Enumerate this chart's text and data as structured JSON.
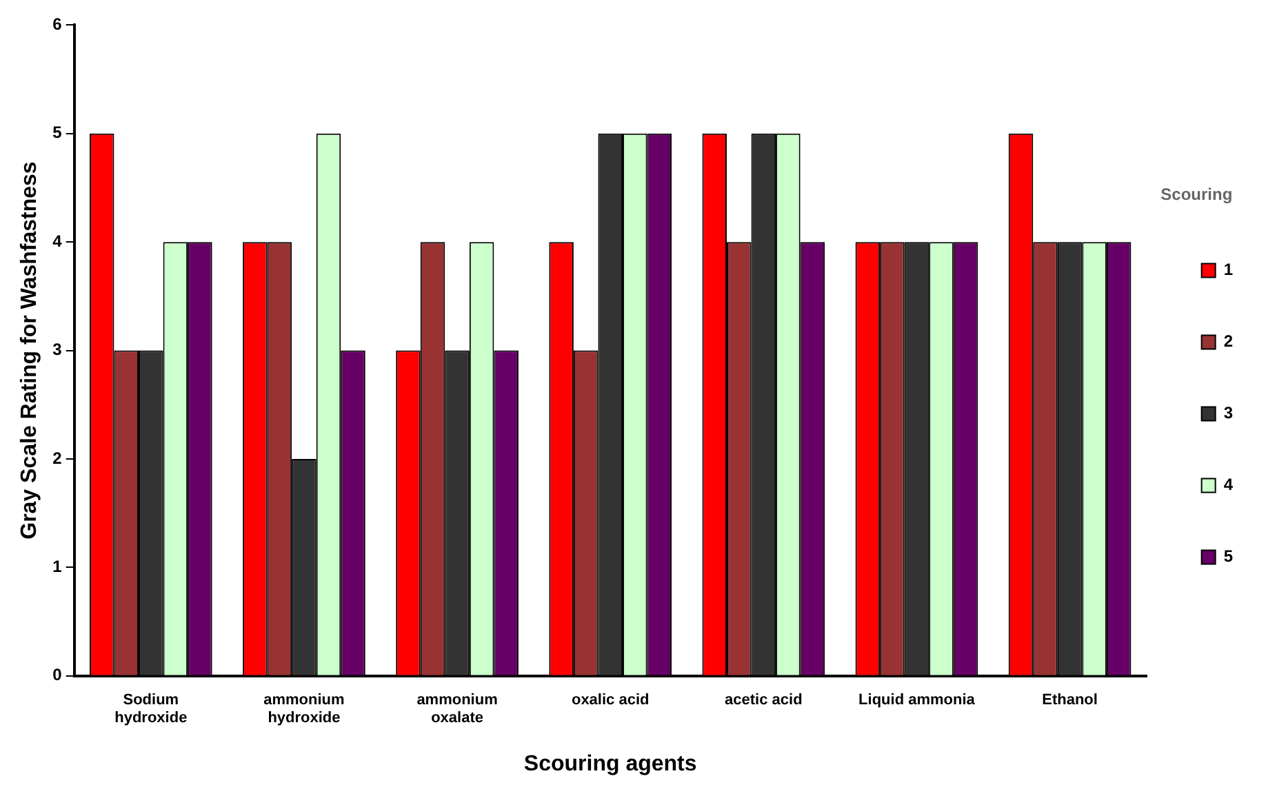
{
  "chart_data": {
    "type": "bar",
    "xlabel": "Scouring agents",
    "ylabel": "Gray Scale Rating for Washfastness",
    "legend_title": "Scouring",
    "categories": [
      "Sodium\nhydroxide",
      "ammonium\nhydroxide",
      "ammonium\noxalate",
      "oxalic acid",
      "acetic acid",
      "Liquid ammonia",
      "Ethanol"
    ],
    "series": [
      {
        "name": "1",
        "color": "#ff0000",
        "values": [
          5,
          4,
          3,
          4,
          5,
          4,
          5
        ]
      },
      {
        "name": "2",
        "color": "#993333",
        "values": [
          3,
          4,
          4,
          3,
          4,
          4,
          4
        ]
      },
      {
        "name": "3",
        "color": "#333333",
        "values": [
          3,
          2,
          3,
          5,
          5,
          4,
          4
        ]
      },
      {
        "name": "4",
        "color": "#ccffcc",
        "values": [
          4,
          5,
          4,
          5,
          5,
          4,
          4
        ]
      },
      {
        "name": "5",
        "color": "#660066",
        "values": [
          4,
          3,
          3,
          5,
          4,
          4,
          4
        ]
      }
    ],
    "ylim": [
      0,
      6
    ],
    "yticks": [
      0,
      1,
      2,
      3,
      4,
      5,
      6
    ],
    "grid": false,
    "legend": "right"
  }
}
